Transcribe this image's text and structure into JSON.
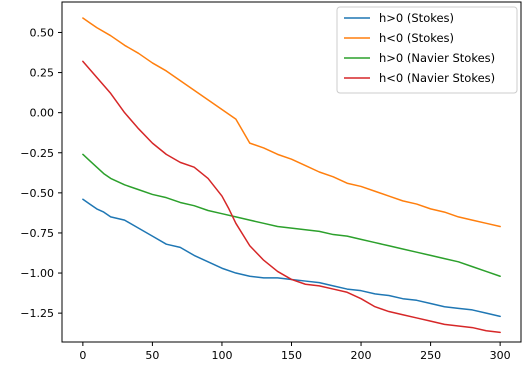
{
  "chart_data": {
    "type": "line",
    "title": "",
    "xlabel": "",
    "ylabel": "",
    "xlim": [
      -15,
      315
    ],
    "ylim": [
      -1.43,
      0.69
    ],
    "x_ticks": [
      0,
      50,
      100,
      150,
      200,
      250,
      300
    ],
    "x_tick_labels": [
      "0",
      "50",
      "100",
      "150",
      "200",
      "250",
      "300"
    ],
    "y_ticks": [
      -1.25,
      -1.0,
      -0.75,
      -0.5,
      -0.25,
      0.0,
      0.25,
      0.5
    ],
    "y_tick_labels": [
      "−1.25",
      "−1.00",
      "−0.75",
      "−0.50",
      "−0.25",
      "0.00",
      "0.25",
      "0.50"
    ],
    "grid": false,
    "legend_position": "top-right",
    "series": [
      {
        "name": "h>0 (Stokes)",
        "color": "#1f77b4",
        "x": [
          0,
          5,
          10,
          15,
          20,
          25,
          30,
          40,
          50,
          60,
          70,
          80,
          90,
          100,
          110,
          120,
          130,
          140,
          150,
          160,
          170,
          180,
          190,
          200,
          210,
          220,
          230,
          240,
          250,
          260,
          270,
          280,
          290,
          300
        ],
        "y": [
          -0.54,
          -0.57,
          -0.6,
          -0.62,
          -0.65,
          -0.66,
          -0.67,
          -0.72,
          -0.77,
          -0.82,
          -0.84,
          -0.89,
          -0.93,
          -0.97,
          -1.0,
          -1.02,
          -1.03,
          -1.03,
          -1.04,
          -1.05,
          -1.06,
          -1.08,
          -1.1,
          -1.11,
          -1.13,
          -1.14,
          -1.16,
          -1.17,
          -1.19,
          -1.21,
          -1.22,
          -1.23,
          -1.25,
          -1.27
        ]
      },
      {
        "name": "h<0 (Stokes)",
        "color": "#ff7f0e",
        "x": [
          0,
          5,
          10,
          20,
          30,
          40,
          50,
          60,
          70,
          80,
          90,
          100,
          110,
          120,
          130,
          140,
          150,
          160,
          170,
          180,
          190,
          200,
          210,
          220,
          230,
          240,
          250,
          260,
          270,
          280,
          290,
          300
        ],
        "y": [
          0.59,
          0.56,
          0.53,
          0.48,
          0.42,
          0.37,
          0.31,
          0.26,
          0.2,
          0.14,
          0.08,
          0.02,
          -0.04,
          -0.19,
          -0.22,
          -0.26,
          -0.29,
          -0.33,
          -0.37,
          -0.4,
          -0.44,
          -0.46,
          -0.49,
          -0.52,
          -0.55,
          -0.57,
          -0.6,
          -0.62,
          -0.65,
          -0.67,
          -0.69,
          -0.71
        ]
      },
      {
        "name": "h>0 (Navier Stokes)",
        "color": "#2ca02c",
        "x": [
          0,
          5,
          10,
          15,
          20,
          30,
          40,
          50,
          60,
          70,
          80,
          90,
          100,
          110,
          120,
          130,
          140,
          150,
          160,
          170,
          180,
          190,
          200,
          210,
          220,
          230,
          240,
          250,
          260,
          270,
          280,
          290,
          300
        ],
        "y": [
          -0.26,
          -0.3,
          -0.34,
          -0.38,
          -0.41,
          -0.45,
          -0.48,
          -0.51,
          -0.53,
          -0.56,
          -0.58,
          -0.61,
          -0.63,
          -0.65,
          -0.67,
          -0.69,
          -0.71,
          -0.72,
          -0.73,
          -0.74,
          -0.76,
          -0.77,
          -0.79,
          -0.81,
          -0.83,
          -0.85,
          -0.87,
          -0.89,
          -0.91,
          -0.93,
          -0.96,
          -0.99,
          -1.02
        ]
      },
      {
        "name": "h<0 (Navier Stokes)",
        "color": "#d62728",
        "x": [
          0,
          5,
          10,
          15,
          20,
          25,
          30,
          40,
          50,
          60,
          70,
          80,
          90,
          100,
          105,
          110,
          120,
          130,
          140,
          150,
          160,
          170,
          180,
          190,
          200,
          210,
          220,
          230,
          240,
          250,
          260,
          270,
          280,
          290,
          300
        ],
        "y": [
          0.32,
          0.27,
          0.22,
          0.17,
          0.12,
          0.06,
          0.0,
          -0.1,
          -0.19,
          -0.26,
          -0.31,
          -0.34,
          -0.41,
          -0.52,
          -0.6,
          -0.69,
          -0.83,
          -0.92,
          -0.99,
          -1.04,
          -1.07,
          -1.08,
          -1.1,
          -1.12,
          -1.16,
          -1.21,
          -1.24,
          -1.26,
          -1.28,
          -1.3,
          -1.32,
          -1.33,
          -1.34,
          -1.36,
          -1.37
        ]
      }
    ]
  }
}
